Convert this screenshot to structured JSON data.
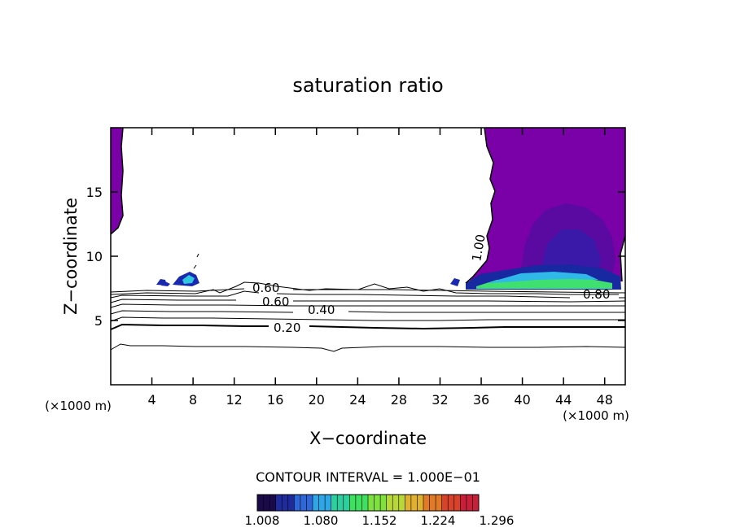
{
  "chart_data": {
    "type": "contour",
    "title": "saturation ratio",
    "xlabel": "X−coordinate",
    "ylabel": "Z−coordinate",
    "x_unit_left": "(×1000 m)",
    "x_unit_right": "(×1000 m)",
    "xlim": [
      0,
      50
    ],
    "ylim": [
      0,
      20
    ],
    "x_ticks": [
      4,
      8,
      12,
      16,
      20,
      24,
      28,
      32,
      36,
      40,
      44,
      48
    ],
    "y_ticks": [
      5,
      10,
      15
    ],
    "contour_labels": [
      {
        "text": "0.20",
        "x": 17.3,
        "z": 4.5
      },
      {
        "text": "0.40",
        "x": 20.8,
        "z": 5.8
      },
      {
        "text": "0.60",
        "x": 15.9,
        "z": 6.5
      },
      {
        "text": "0.60",
        "x": 15.2,
        "z": 7.4
      },
      {
        "text": "0.80",
        "x": 47.2,
        "z": 7.0
      },
      {
        "text": "1.00",
        "x": 35.3,
        "z": 10.0
      }
    ],
    "contour_interval_text": "CONTOUR INTERVAL = 1.000E−01",
    "colorbar": {
      "ticks": [
        "1.008",
        "1.080",
        "1.152",
        "1.224",
        "1.296"
      ],
      "colors": [
        "#1a0a4a",
        "#1f2b9c",
        "#2f66d8",
        "#2fa6e6",
        "#2ecf9e",
        "#3fe060",
        "#7fe040",
        "#b8d838",
        "#e0b030",
        "#e07a28",
        "#d8422a",
        "#c8203a"
      ]
    }
  }
}
